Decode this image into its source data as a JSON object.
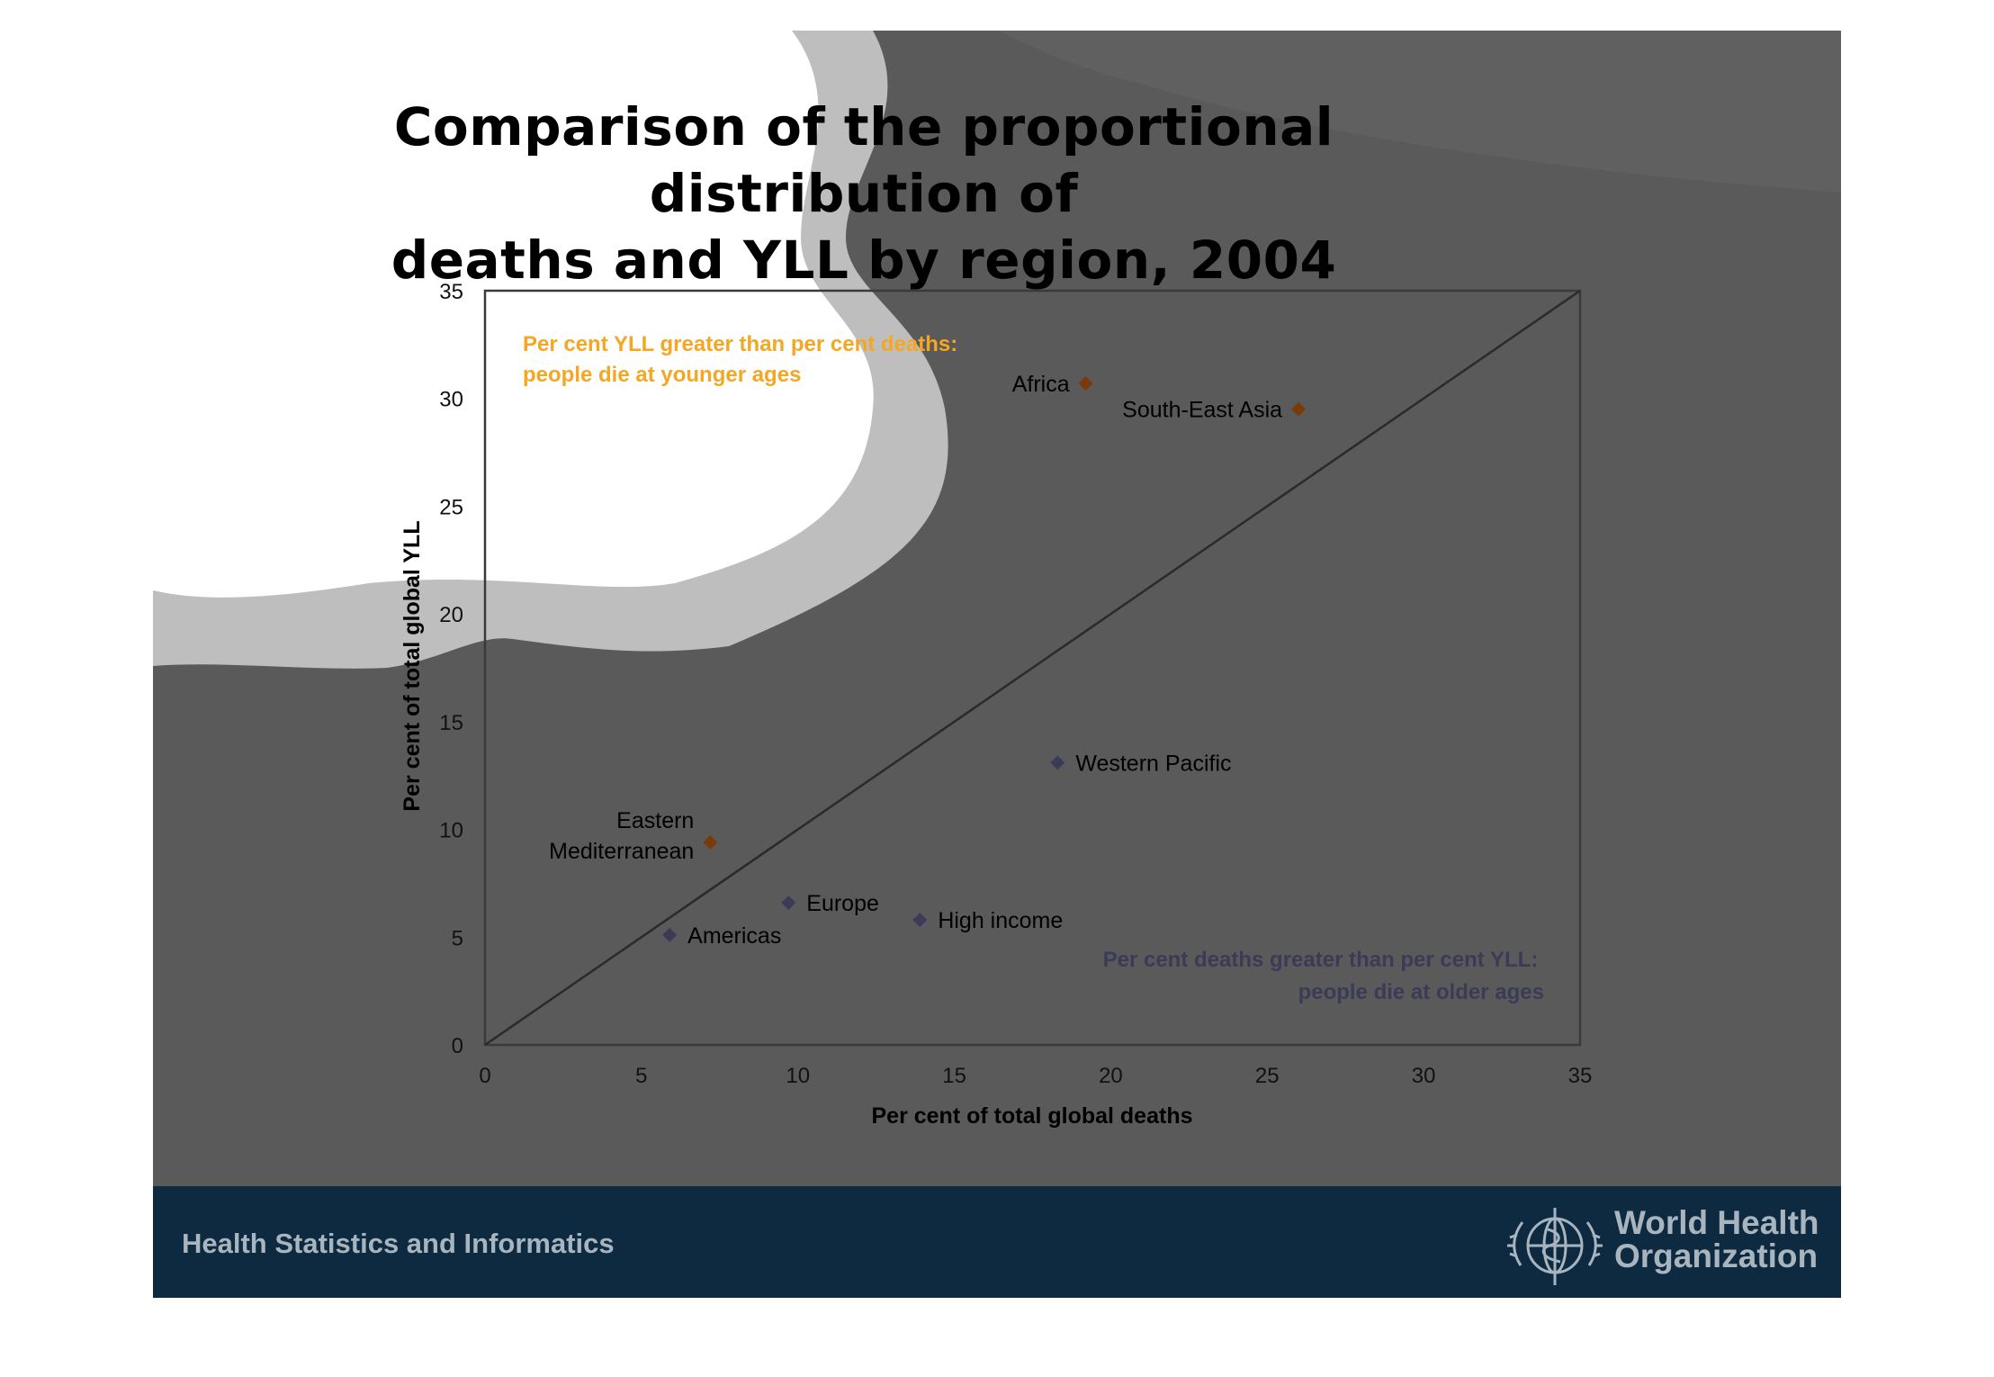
{
  "slide": {
    "title": "Comparison of the proportional distribution of\ndeaths and YLL by region, 2004",
    "footer_label": "Health Statistics and Informatics",
    "organization_name": "World Health\nOrganization",
    "logo_icon": "who-emblem-icon"
  },
  "colors": {
    "background_dark": "#5a5a5a",
    "background_light": "#bebebe",
    "footer": "#0d2a40",
    "footer_text": "#a8b4be",
    "younger_ages": "#7a3a0a",
    "older_ages": "#3b3b58",
    "annotation_orange": "#f5a623"
  },
  "chart_data": {
    "type": "scatter",
    "xlabel": "Per cent of total global deaths",
    "ylabel": "Per cent of total global YLL",
    "xlim": [
      0,
      35
    ],
    "ylim": [
      0,
      35
    ],
    "xticks": [
      0,
      5,
      10,
      15,
      20,
      25,
      30,
      35
    ],
    "yticks": [
      0,
      5,
      10,
      15,
      20,
      25,
      30,
      35
    ],
    "grid": false,
    "reference_line": {
      "from": [
        0,
        0
      ],
      "to": [
        35,
        35
      ]
    },
    "points": [
      {
        "label": "Africa",
        "x": 19.2,
        "y": 30.7,
        "group": "younger"
      },
      {
        "label": "South-East Asia",
        "x": 26.0,
        "y": 29.5,
        "group": "younger"
      },
      {
        "label": "Western Pacific",
        "x": 18.3,
        "y": 13.1,
        "group": "older"
      },
      {
        "label": "Eastern\nMediterranean",
        "x": 7.2,
        "y": 9.4,
        "group": "younger"
      },
      {
        "label": "Europe",
        "x": 9.7,
        "y": 6.6,
        "group": "older"
      },
      {
        "label": "High income",
        "x": 13.9,
        "y": 5.8,
        "group": "older"
      },
      {
        "label": "Americas",
        "x": 5.9,
        "y": 5.1,
        "group": "older"
      }
    ],
    "annotations": [
      {
        "text": "Per cent YLL greater than per cent deaths:\npeople die at younger ages",
        "position": "top-left"
      },
      {
        "text": "Per cent deaths greater than per cent YLL:\npeople die at older ages",
        "position": "bottom-right"
      }
    ]
  }
}
